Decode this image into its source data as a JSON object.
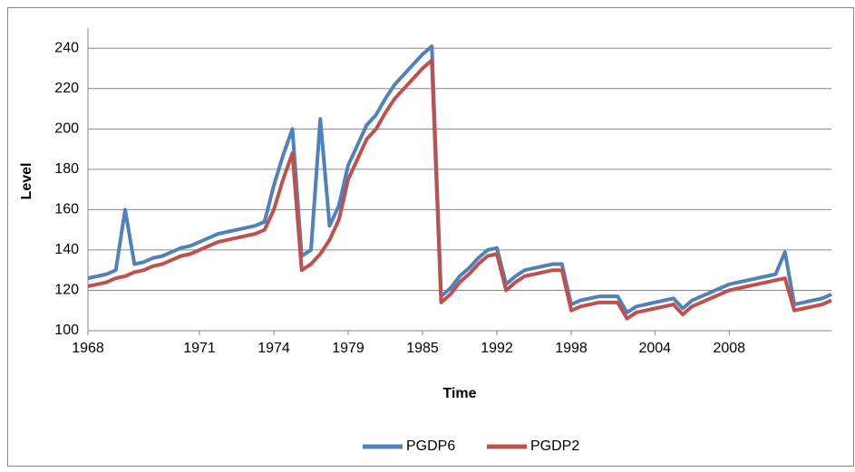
{
  "chart_data": {
    "type": "line",
    "x_label": "Time",
    "y_label": "Level",
    "categories": [
      "1968",
      null,
      null,
      null,
      null,
      null,
      null,
      null,
      null,
      null,
      null,
      null,
      "1971",
      null,
      null,
      null,
      null,
      null,
      null,
      null,
      "1974",
      null,
      null,
      null,
      null,
      null,
      null,
      null,
      "1979",
      null,
      null,
      null,
      null,
      null,
      null,
      null,
      "1985",
      null,
      null,
      null,
      null,
      null,
      null,
      null,
      "1992",
      null,
      null,
      null,
      null,
      null,
      null,
      null,
      "1998",
      null,
      null,
      null,
      null,
      null,
      null,
      null,
      null,
      "2004",
      null,
      null,
      null,
      null,
      null,
      null,
      null,
      "2008",
      null,
      null,
      null,
      null,
      null,
      null,
      null,
      null,
      null,
      null,
      null
    ],
    "series": [
      {
        "name": "PGDP6",
        "color": "#4f81bd",
        "values": [
          126,
          127,
          128,
          130,
          160,
          133,
          134,
          136,
          137,
          139,
          141,
          142,
          144,
          146,
          148,
          149,
          150,
          151,
          152,
          154,
          172,
          187,
          200,
          137,
          140,
          205,
          152,
          162,
          182,
          192,
          202,
          207,
          215,
          222,
          227,
          232,
          237,
          241,
          117,
          121,
          127,
          131,
          136,
          140,
          141,
          123,
          127,
          130,
          131,
          132,
          133,
          133,
          113,
          115,
          116,
          117,
          117,
          117,
          109,
          112,
          113,
          114,
          115,
          116,
          111,
          115,
          117,
          119,
          121,
          123,
          124,
          125,
          126,
          127,
          128,
          139,
          113,
          114,
          115,
          116,
          118
        ]
      },
      {
        "name": "PGDP2",
        "color": "#c0504d",
        "values": [
          122,
          123,
          124,
          126,
          127,
          129,
          130,
          132,
          133,
          135,
          137,
          138,
          140,
          142,
          144,
          145,
          146,
          147,
          148,
          150,
          160,
          175,
          188,
          130,
          133,
          138,
          145,
          155,
          175,
          185,
          195,
          200,
          208,
          215,
          220,
          225,
          230,
          234,
          114,
          118,
          124,
          128,
          133,
          137,
          138,
          120,
          124,
          127,
          128,
          129,
          130,
          130,
          110,
          112,
          113,
          114,
          114,
          114,
          106,
          109,
          110,
          111,
          112,
          113,
          108,
          112,
          114,
          116,
          118,
          120,
          121,
          122,
          123,
          124,
          125,
          126,
          110,
          111,
          112,
          113,
          115
        ]
      }
    ],
    "ylim": [
      100,
      250
    ],
    "yticks": [
      100,
      120,
      140,
      160,
      180,
      200,
      220,
      240
    ],
    "grid": true,
    "legend": "bottom"
  }
}
